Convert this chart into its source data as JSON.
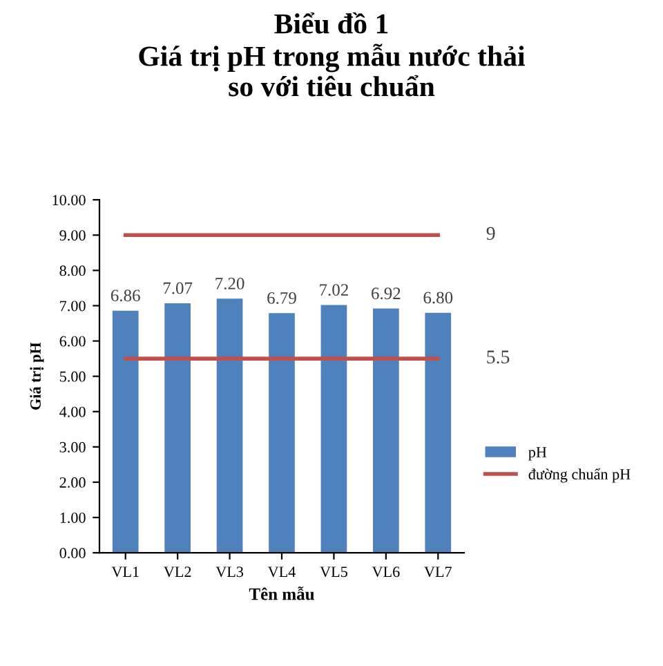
{
  "chart_data": {
    "type": "bar",
    "title": "Biểu đồ 1\nGiá trị pH trong mẫu nước thải\nso với tiêu chuẩn",
    "xlabel": "Tên mẫu",
    "ylabel": "Giá trị pH",
    "categories": [
      "VL1",
      "VL2",
      "VL3",
      "VL4",
      "VL5",
      "VL6",
      "VL7"
    ],
    "series": [
      {
        "name": "pH",
        "color": "#4f81bd",
        "values": [
          6.86,
          7.07,
          7.2,
          6.79,
          7.02,
          6.92,
          6.8
        ],
        "value_labels": [
          "6.86",
          "7.07",
          "7.20",
          "6.79",
          "7.02",
          "6.92",
          "6.80"
        ]
      },
      {
        "name": "đường chuẩn pH",
        "type": "line",
        "color": "#c0504d",
        "values": [
          9,
          9,
          9,
          9,
          9,
          9,
          9
        ]
      },
      {
        "type": "line",
        "color": "#c0504d",
        "values": [
          5.5,
          5.5,
          5.5,
          5.5,
          5.5,
          5.5,
          5.5
        ]
      }
    ],
    "annotations": [
      {
        "text": "9",
        "x": "VL7",
        "y": 9
      },
      {
        "text": "5.5",
        "x": "VL7",
        "y": 5.5
      }
    ],
    "ylim": [
      0,
      10
    ],
    "yticks": [
      {
        "value": 0,
        "label": "0.00"
      },
      {
        "value": 1,
        "label": "1.00"
      },
      {
        "value": 2,
        "label": "2.00"
      },
      {
        "value": 3,
        "label": "3.00"
      },
      {
        "value": 4,
        "label": "4.00"
      },
      {
        "value": 5,
        "label": "5.00"
      },
      {
        "value": 6,
        "label": "6.00"
      },
      {
        "value": 7,
        "label": "7.00"
      },
      {
        "value": 8,
        "label": "8.00"
      },
      {
        "value": 9,
        "label": "9.00"
      },
      {
        "value": 10,
        "label": "10.00"
      }
    ],
    "grid": false,
    "legend": "right"
  }
}
